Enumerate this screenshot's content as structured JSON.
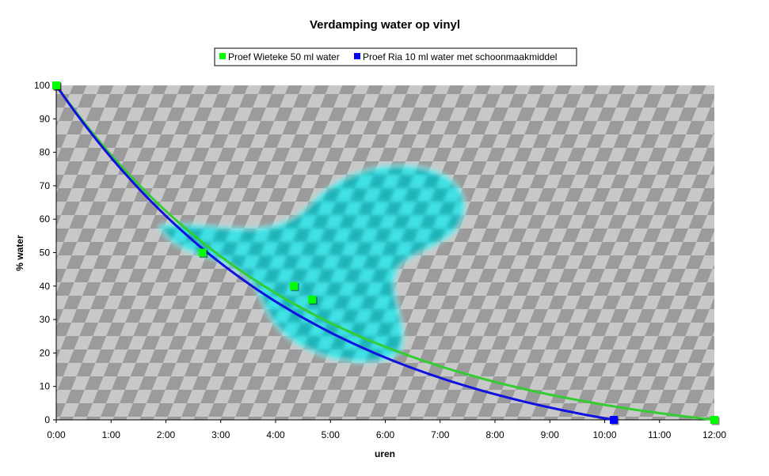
{
  "chart_data": {
    "type": "scatter",
    "title": "Verdamping water op vinyl",
    "xlabel": "uren",
    "ylabel": "% water",
    "xlim": [
      "0:00",
      "12:00"
    ],
    "ylim": [
      0,
      100
    ],
    "x_ticks": [
      "0:00",
      "1:00",
      "2:00",
      "3:00",
      "4:00",
      "5:00",
      "6:00",
      "7:00",
      "8:00",
      "9:00",
      "10:00",
      "11:00",
      "12:00"
    ],
    "y_ticks": [
      0,
      10,
      20,
      30,
      40,
      50,
      60,
      70,
      80,
      90,
      100
    ],
    "grid": false,
    "legend_position": "top",
    "series": [
      {
        "name": "Proef Wieteke 50 ml water",
        "color": "#00ff00",
        "trendline_color": "#33cc33",
        "points": [
          {
            "x": "0:00",
            "y": 100
          },
          {
            "x": "2:40",
            "y": 50
          },
          {
            "x": "4:20",
            "y": 40
          },
          {
            "x": "4:40",
            "y": 36
          },
          {
            "x": "12:00",
            "y": 0
          }
        ]
      },
      {
        "name": "Proef Ria 10 ml water met schoonmaakmiddel",
        "color": "#0000ff",
        "trendline_color": "#1010e0",
        "points": [
          {
            "x": "0:00",
            "y": 100
          },
          {
            "x": "10:10",
            "y": 0
          }
        ]
      }
    ]
  }
}
